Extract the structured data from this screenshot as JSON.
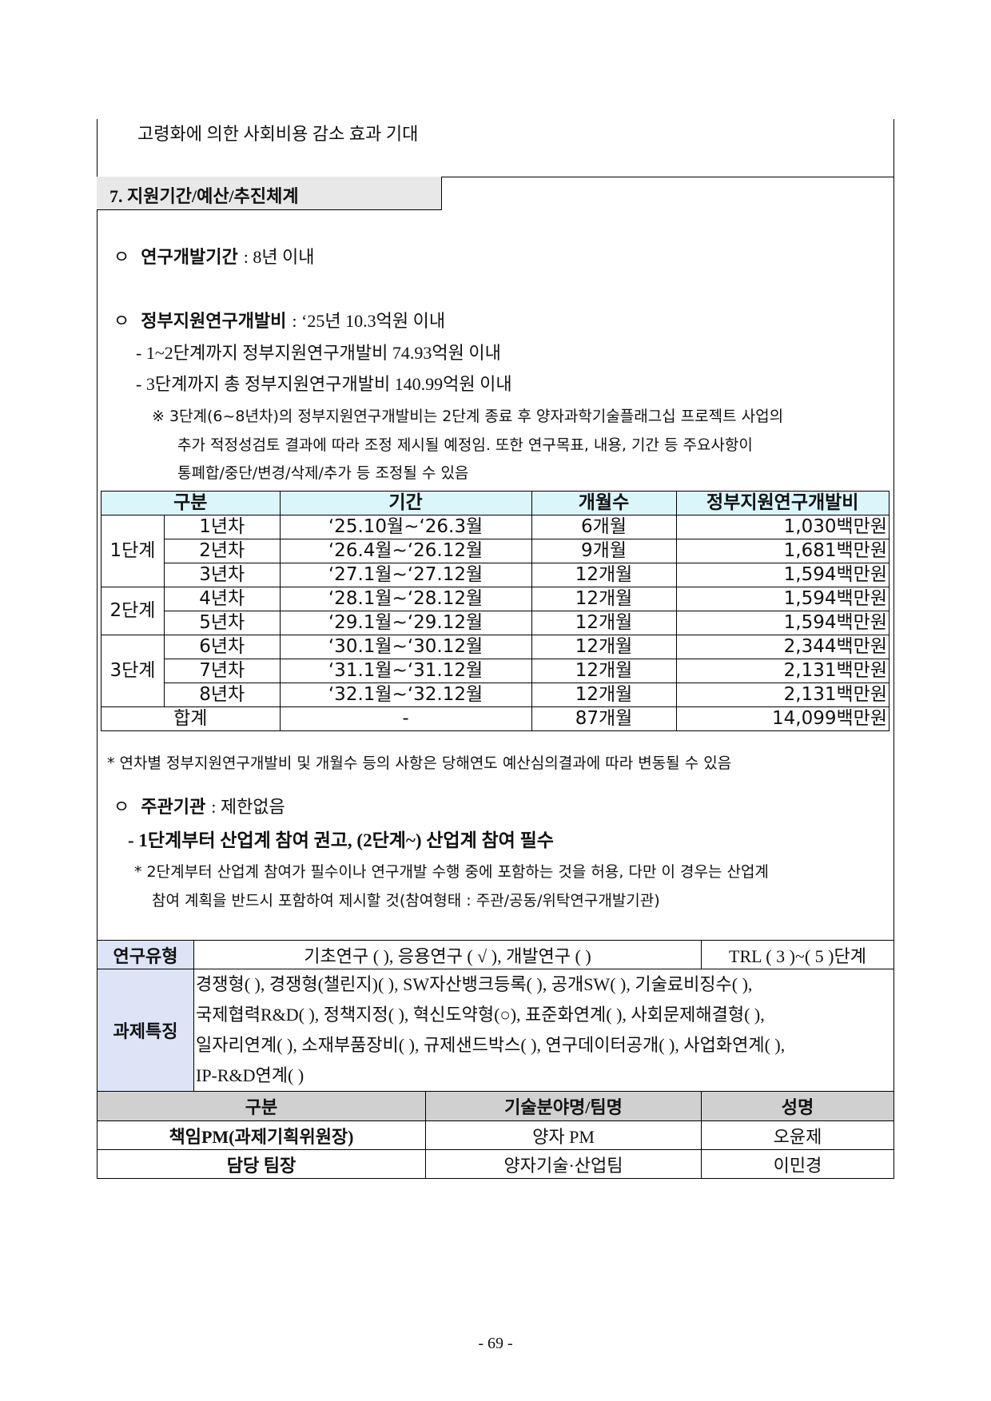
{
  "prev_text": "고령화에 의한 사회비용 감소 효과 기대",
  "section": {
    "title": "7. 지원기간/예산/추진체계"
  },
  "period": {
    "label": "연구개발기간",
    "value": ": 8년 이내"
  },
  "budget": {
    "label": "정부지원연구개발비",
    "value": ": ‘25년 10.3억원 이내",
    "items": [
      "- 1~2단계까지 정부지원연구개발비 74.93억원 이내",
      "- 3단계까지 총 정부지원연구개발비 140.99억원 이내"
    ],
    "note": [
      "※ 3단계(6~8년차)의 정부지원연구개발비는 2단계 종료 후 양자과학기술플래그십 프로젝트 사업의",
      "추가 적정성검토 결과에 따라 조정 제시될 예정임. 또한 연구목표, 내용, 기간 등 주요사항이",
      "통폐합/중단/변경/삭제/추가 등 조정될 수 있음"
    ]
  },
  "budget_table": {
    "headers": [
      "구분",
      "기간",
      "개월수",
      "정부지원연구개발비"
    ],
    "stages": [
      "1단계",
      "2단계",
      "3단계"
    ],
    "rows": [
      [
        "1년차",
        "‘25.10월~‘26.3월",
        "6개월",
        "1,030백만원"
      ],
      [
        "2년차",
        "‘26.4월~‘26.12월",
        "9개월",
        "1,681백만원"
      ],
      [
        "3년차",
        "‘27.1월~‘27.12월",
        "12개월",
        "1,594백만원"
      ],
      [
        "4년차",
        "‘28.1월~‘28.12월",
        "12개월",
        "1,594백만원"
      ],
      [
        "5년차",
        "‘29.1월~‘29.12월",
        "12개월",
        "1,594백만원"
      ],
      [
        "6년차",
        "‘30.1월~‘30.12월",
        "12개월",
        "2,344백만원"
      ],
      [
        "7년차",
        "‘31.1월~‘31.12월",
        "12개월",
        "2,131백만원"
      ],
      [
        "8년차",
        "‘32.1월~‘32.12월",
        "12개월",
        "2,131백만원"
      ]
    ],
    "total": [
      "합계",
      "-",
      "87개월",
      "14,099백만원"
    ],
    "footnote": "* 연차별 정부지원연구개발비 및 개월수 등의 사항은 당해연도 예산심의결과에 따라 변동될 수 있음"
  },
  "host": {
    "label": "주관기관",
    "value": ": 제한없음",
    "item": "- 1단계부터 산업계 참여 권고, (2단계~) 산업계 참여 필수",
    "note": [
      "* 2단계부터 산업계 참여가 필수이나 연구개발 수행 중에 포함하는 것을 허용, 다만 이 경우는 산업계",
      "참여 계획을 반드시 포함하여 제시할 것(참여형태 : 주관/공동/위탁연구개발기관)"
    ]
  },
  "info_table": {
    "type_label": "연구유형",
    "type_value": "기초연구 (    ), 응용연구 ( √ ), 개발연구 (    )",
    "trl": "TRL ( 3 )~( 5 )단계",
    "feature_label": "과제특징",
    "features": [
      "경쟁형( ), 경쟁형(챌린지)( ), SW자산뱅크등록( ), 공개SW(   ), 기술료비징수( ),",
      "국제협력R&D( ), 정책지정( ), 혁신도약형(○), 표준화연계( ), 사회문제해결형( ),",
      "일자리연계( ), 소재부품장비( ), 규제샌드박스( ), 연구데이터공개( ), 사업화연계( ),",
      "IP-R&D연계( )"
    ],
    "headers": [
      "구분",
      "기술분야명/팀명",
      "성명"
    ],
    "rows": [
      [
        "책임PM(과제기획위원장)",
        "양자 PM",
        "오윤제"
      ],
      [
        "담당 팀장",
        "양자기술·산업팀",
        "이민경"
      ]
    ]
  },
  "page_number": "- 69 -"
}
